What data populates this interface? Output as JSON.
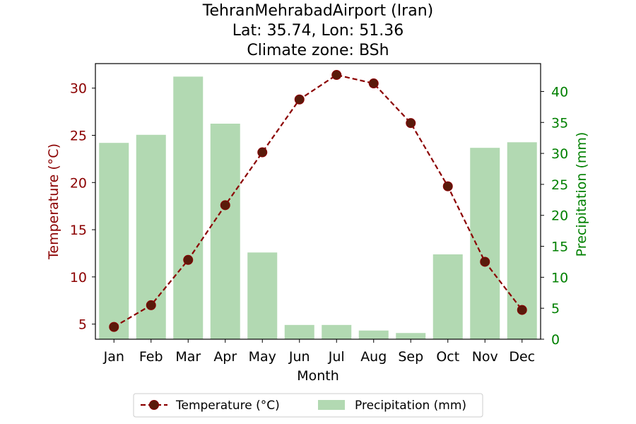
{
  "chart_data": {
    "type": "bar+line",
    "title_lines": [
      "TehranMehrabadAirport (Iran)",
      "Lat: 35.74, Lon: 51.36",
      "Climate zone: BSh"
    ],
    "xlabel": "Month",
    "ylabel_left": "Temperature (°C)",
    "ylabel_right": "Precipitation (mm)",
    "categories": [
      "Jan",
      "Feb",
      "Mar",
      "Apr",
      "May",
      "Jun",
      "Jul",
      "Aug",
      "Sep",
      "Oct",
      "Nov",
      "Dec"
    ],
    "left_axis": {
      "ylim": [
        3.4,
        32.6
      ],
      "ticks": [
        5,
        10,
        15,
        20,
        25,
        30
      ]
    },
    "right_axis": {
      "ylim": [
        0,
        44.5
      ],
      "ticks": [
        0,
        5,
        10,
        15,
        20,
        25,
        30,
        35,
        40
      ]
    },
    "series": [
      {
        "name": "Temperature (°C)",
        "kind": "line",
        "axis": "left",
        "color": "#8b0000",
        "marker_color": "#5a1a0a",
        "values": [
          4.7,
          7.0,
          11.8,
          17.6,
          23.2,
          28.8,
          31.4,
          30.5,
          26.3,
          19.6,
          11.6,
          6.5
        ]
      },
      {
        "name": "Precipitation (mm)",
        "kind": "bar",
        "axis": "right",
        "color": "#b2d9b2",
        "values": [
          31.7,
          33.0,
          42.4,
          34.8,
          14.0,
          2.3,
          2.3,
          1.4,
          1.0,
          13.7,
          30.9,
          31.8
        ]
      }
    ],
    "legend": {
      "placement": "bottom-center"
    },
    "grid": false
  },
  "colors": {
    "left_axis_text": "#8b0000",
    "right_axis_text": "#008000",
    "axis_line": "#000000"
  }
}
